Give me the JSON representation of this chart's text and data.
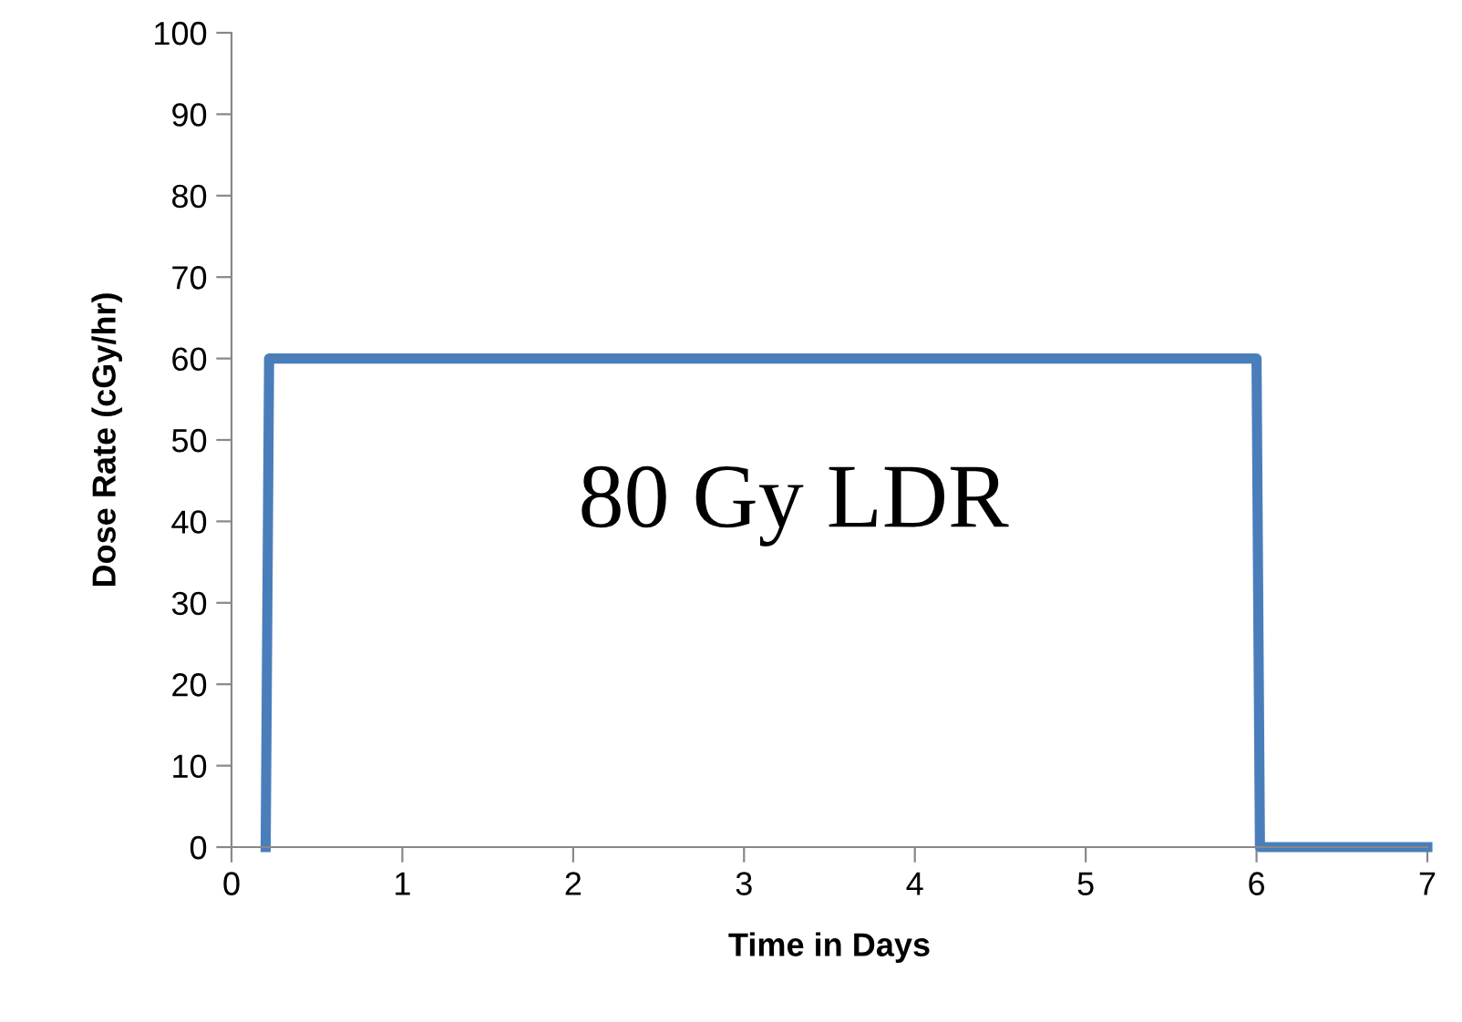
{
  "chart_data": {
    "type": "line",
    "xlabel": "Time in Days",
    "ylabel": "Dose Rate (cGy/hr)",
    "annotations": [
      "80 Gy LDR"
    ],
    "series": [
      {
        "color": "#4a7ebb",
        "x": [
          0.2,
          0.22,
          6.0,
          6.02,
          7
        ],
        "values": [
          0,
          60,
          60,
          0,
          0
        ]
      }
    ],
    "xlim": [
      0,
      7
    ],
    "xticks": [
      0,
      1,
      2,
      3,
      4,
      5,
      6,
      7
    ],
    "ylim": [
      0,
      100
    ],
    "yticks": [
      0,
      10,
      20,
      30,
      40,
      50,
      60,
      70,
      80,
      90,
      100
    ],
    "grid": false,
    "legend": false,
    "marker": "none",
    "line_style": "solid"
  }
}
